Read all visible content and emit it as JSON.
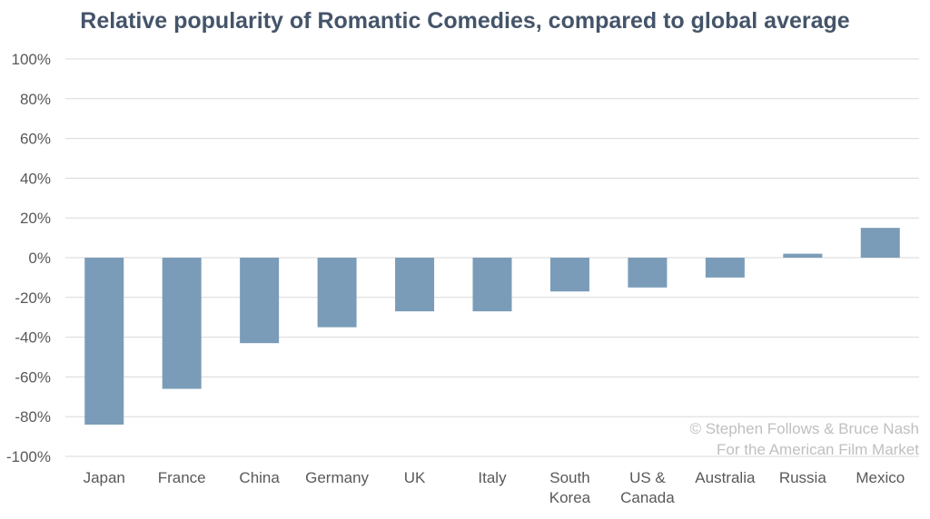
{
  "chart_data": {
    "type": "bar",
    "title": "Relative popularity of Romantic Comedies, compared to global average",
    "categories": [
      "Japan",
      "France",
      "China",
      "Germany",
      "UK",
      "Italy",
      "South\nKorea",
      "US &\nCanada",
      "Australia",
      "Russia",
      "Mexico"
    ],
    "values": [
      -84,
      -66,
      -43,
      -35,
      -27,
      -27,
      -17,
      -15,
      -10,
      2,
      15
    ],
    "ylim": [
      -100,
      100
    ],
    "yticks": [
      "100%",
      "80%",
      "60%",
      "40%",
      "20%",
      "0%",
      "-20%",
      "-40%",
      "-60%",
      "-80%",
      "-100%"
    ],
    "ytick_values": [
      100,
      80,
      60,
      40,
      20,
      0,
      -20,
      -40,
      -60,
      -80,
      -100
    ],
    "xlabel": "",
    "ylabel": "",
    "grid": true,
    "bar_color": "#7a9cb8",
    "credit_lines": [
      "© Stephen Follows & Bruce Nash",
      "For the American Film Market"
    ]
  }
}
